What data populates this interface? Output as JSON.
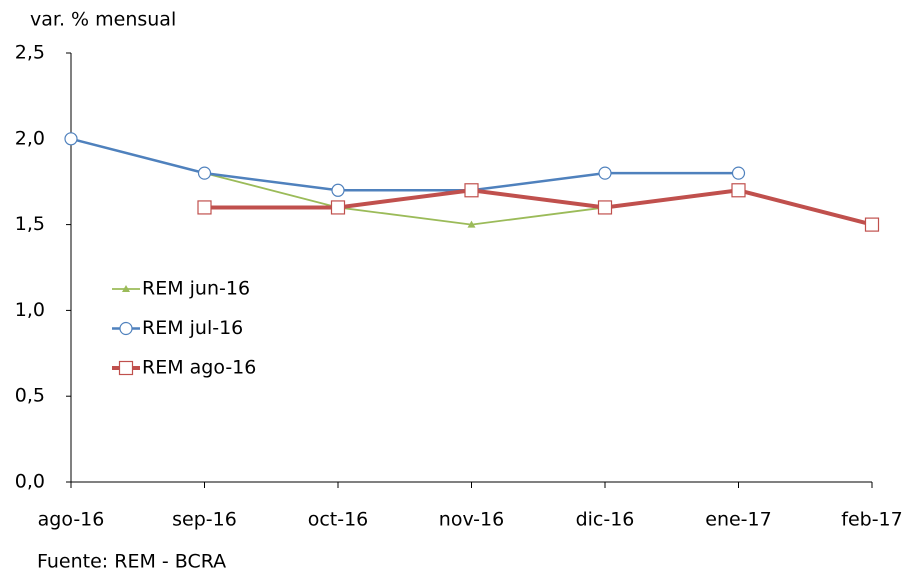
{
  "chart_data": {
    "type": "line",
    "y_label": "var. % mensual",
    "source": "Fuente: REM - BCRA",
    "categories": [
      "ago-16",
      "sep-16",
      "oct-16",
      "nov-16",
      "dic-16",
      "ene-17",
      "feb-17"
    ],
    "series": [
      {
        "name": "REM jun-16",
        "color": "#9bbb59",
        "marker": "triangle",
        "values": [
          2.0,
          1.8,
          1.6,
          1.5,
          1.6,
          null,
          null
        ]
      },
      {
        "name": "REM jul-16",
        "color": "#4f81bd",
        "marker": "circle",
        "values": [
          2.0,
          1.8,
          1.7,
          1.7,
          1.8,
          1.8,
          null
        ]
      },
      {
        "name": "REM ago-16",
        "color": "#c0504d",
        "marker": "square",
        "values": [
          null,
          1.6,
          1.6,
          1.7,
          1.6,
          1.7,
          1.5
        ]
      }
    ],
    "ylim": [
      0,
      2.5
    ],
    "yticks": [
      {
        "value": 0,
        "label": "0,0"
      },
      {
        "value": 0.5,
        "label": "0,5"
      },
      {
        "value": 1,
        "label": "1,0"
      },
      {
        "value": 1.5,
        "label": "1,5"
      },
      {
        "value": 2,
        "label": "2,0"
      },
      {
        "value": 2.5,
        "label": "2,5"
      }
    ],
    "grid": false,
    "legend": "left"
  }
}
